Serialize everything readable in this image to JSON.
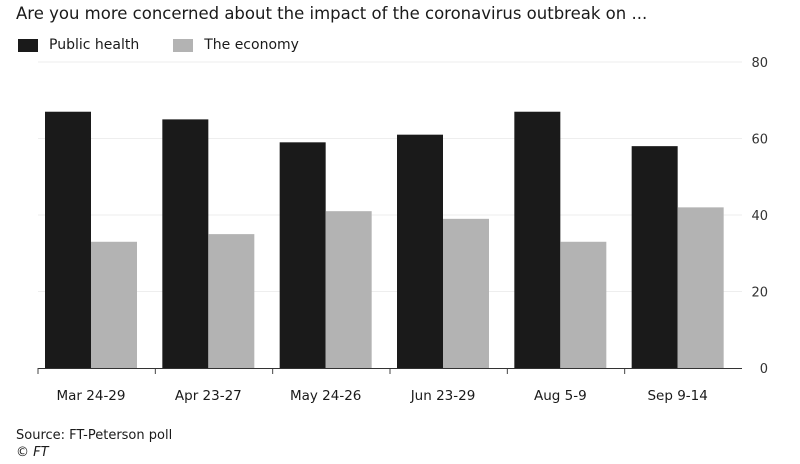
{
  "chart_data": {
    "type": "bar",
    "title": "Are you more concerned about the impact of the coronavirus outbreak on ...",
    "categories": [
      "Mar 24-29",
      "Apr 23-27",
      "May 24-26",
      "Jun 23-29",
      "Aug 5-9",
      "Sep 9-14"
    ],
    "series": [
      {
        "name": "Public health",
        "color": "#1a1a1a",
        "values": [
          67,
          65,
          59,
          61,
          67,
          58
        ]
      },
      {
        "name": "The economy",
        "color": "#b3b3b3",
        "values": [
          33,
          35,
          41,
          39,
          33,
          42
        ]
      }
    ],
    "ylim": [
      0,
      80
    ],
    "yticks": [
      0,
      20,
      40,
      60,
      80
    ],
    "y_axis_side": "right",
    "grid": true,
    "legend_position": "top-left",
    "source": "Source: FT-Peterson poll",
    "credit": "© FT"
  }
}
